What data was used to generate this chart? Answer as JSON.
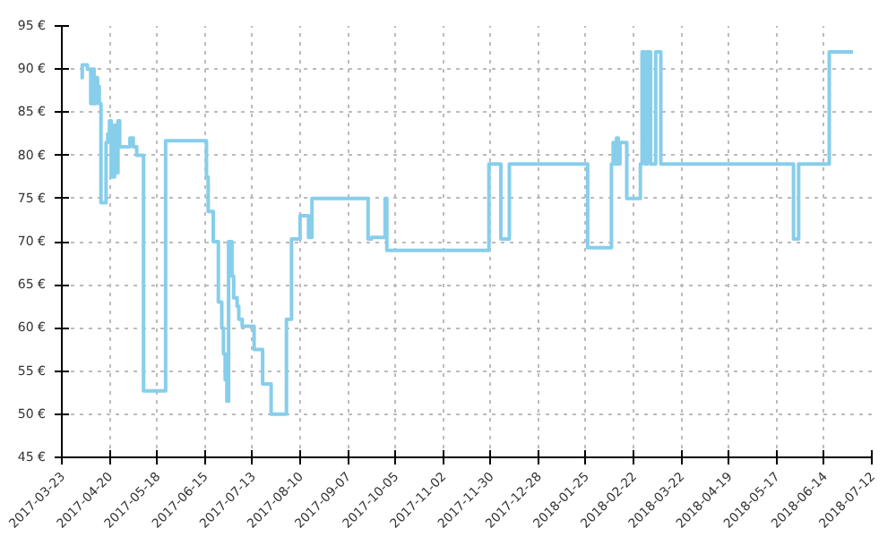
{
  "chart_data": {
    "type": "step",
    "color": "#87ceeb",
    "grid": true,
    "line_style": "solid",
    "x": [
      "2017-04-03",
      "2017-04-04",
      "2017-04-07",
      "2017-04-09",
      "2017-04-10",
      "2017-04-11",
      "2017-04-12",
      "2017-04-13",
      "2017-04-14",
      "2017-04-15",
      "2017-04-18",
      "2017-04-19",
      "2017-04-20",
      "2017-04-21",
      "2017-04-23",
      "2017-04-24",
      "2017-04-25",
      "2017-04-26",
      "2017-05-02",
      "2017-05-04",
      "2017-05-06",
      "2017-05-10",
      "2017-05-23",
      "2017-06-16",
      "2017-06-17",
      "2017-06-20",
      "2017-06-23",
      "2017-06-25",
      "2017-06-26",
      "2017-06-27",
      "2017-06-28",
      "2017-06-29",
      "2017-07-01",
      "2017-07-02",
      "2017-07-04",
      "2017-07-05",
      "2017-07-07",
      "2017-07-14",
      "2017-07-19",
      "2017-07-24",
      "2017-08-02",
      "2017-08-05",
      "2017-08-10",
      "2017-08-15",
      "2017-08-17",
      "2017-09-19",
      "2017-09-21",
      "2017-09-29",
      "2017-09-30",
      "2017-11-29",
      "2017-12-06",
      "2017-12-11",
      "2018-01-26",
      "2018-02-09",
      "2018-02-10",
      "2018-02-11",
      "2018-02-12",
      "2018-02-13",
      "2018-02-14",
      "2018-02-18",
      "2018-02-26",
      "2018-02-27",
      "2018-03-01",
      "2018-03-02",
      "2018-03-04",
      "2018-03-07",
      "2018-03-10",
      "2018-05-27",
      "2018-05-30",
      "2018-06-17",
      "2018-07-01"
    ],
    "values": [
      89,
      90.5,
      90,
      86,
      90,
      86,
      89,
      88,
      86,
      74.5,
      81.5,
      82.5,
      84,
      77.5,
      83.5,
      78,
      84,
      81,
      82,
      81,
      80,
      52.7,
      81.7,
      77.5,
      73.5,
      70,
      63,
      60,
      57,
      54,
      51.5,
      70,
      66,
      63.5,
      62.5,
      61,
      60.2,
      57.5,
      53.5,
      50,
      61,
      70.3,
      73,
      70.5,
      75,
      70.3,
      70.5,
      75,
      69,
      79,
      70.3,
      79,
      69.3,
      79,
      81.5,
      79,
      82,
      79,
      81.5,
      75,
      79,
      92,
      79,
      92,
      79,
      92,
      79,
      70.3,
      79,
      92,
      92
    ],
    "xlim": [
      "2017-03-23",
      "2018-07-12"
    ],
    "xticks": [
      "2017-03-23",
      "2017-04-20",
      "2017-05-18",
      "2017-06-15",
      "2017-07-13",
      "2017-08-10",
      "2017-09-07",
      "2017-10-05",
      "2017-11-02",
      "2017-11-30",
      "2017-12-28",
      "2018-01-25",
      "2018-02-22",
      "2018-03-22",
      "2018-04-19",
      "2018-05-17",
      "2018-06-14",
      "2018-07-12"
    ],
    "ylim": [
      45,
      95
    ],
    "yticks": [
      {
        "value": 45,
        "label": "45 €"
      },
      {
        "value": 50,
        "label": "50 €"
      },
      {
        "value": 55,
        "label": "55 €"
      },
      {
        "value": 60,
        "label": "60 €"
      },
      {
        "value": 65,
        "label": "65 €"
      },
      {
        "value": 70,
        "label": "70 €"
      },
      {
        "value": 75,
        "label": "75 €"
      },
      {
        "value": 80,
        "label": "80 €"
      },
      {
        "value": 85,
        "label": "85 €"
      },
      {
        "value": 90,
        "label": "90 €"
      },
      {
        "value": 95,
        "label": "95 €"
      }
    ]
  }
}
